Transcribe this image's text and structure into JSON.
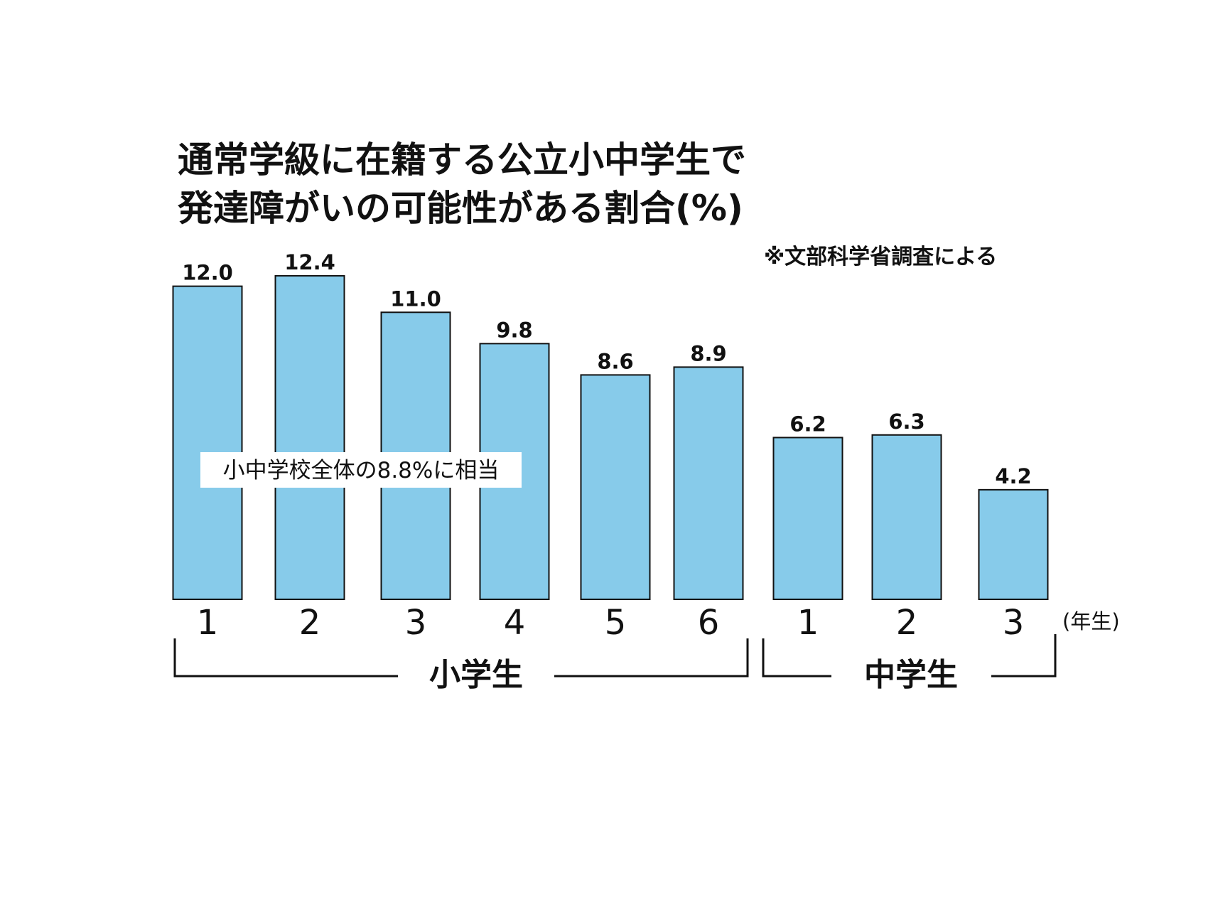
{
  "chart_data": {
    "type": "bar",
    "title": [
      "通常学級に在籍する公立小中学生で",
      "発達障がいの可能性がある割合(%)"
    ],
    "source": "※文部科学省調査による",
    "categories": [
      "1",
      "2",
      "3",
      "4",
      "5",
      "6",
      "1",
      "2",
      "3"
    ],
    "values": [
      12.0,
      12.4,
      11.0,
      9.8,
      8.6,
      8.9,
      6.2,
      6.3,
      4.2
    ],
    "value_labels": [
      "12.0",
      "12.4",
      "11.0",
      "9.8",
      "8.6",
      "8.9",
      "6.2",
      "6.3",
      "4.2"
    ],
    "x_unit": "(年生)",
    "groups": [
      {
        "name": "小学生",
        "range": [
          0,
          5
        ]
      },
      {
        "name": "中学生",
        "range": [
          6,
          8
        ]
      }
    ],
    "annotation": "小中学校全体の8.8%に相当",
    "bar_color": "#87CBEA",
    "bar_edge_color": "#111111",
    "grid": false,
    "legend": "none"
  }
}
